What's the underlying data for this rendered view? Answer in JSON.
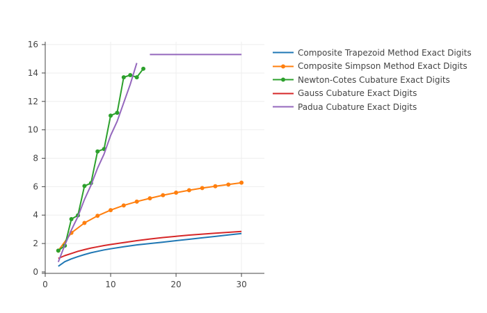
{
  "chart_data": {
    "type": "line",
    "title": "",
    "xlabel": "",
    "ylabel": "",
    "xlim": [
      0,
      33.5
    ],
    "ylim": [
      -0.1,
      16.2
    ],
    "x_ticks": [
      0,
      10,
      20,
      30
    ],
    "y_ticks": [
      0,
      2,
      4,
      6,
      8,
      10,
      12,
      14,
      16
    ],
    "grid": true,
    "legend_position": "top-right (outside plot)",
    "series": [
      {
        "name": "Composite Trapezoid Method Exact Digits",
        "color": "#1f77b4",
        "markers": false,
        "x": [
          2,
          3,
          4,
          5,
          6,
          7,
          8,
          9,
          10,
          12,
          14,
          16,
          18,
          20,
          22,
          24,
          26,
          28,
          30
        ],
        "y": [
          0.4,
          0.72,
          0.92,
          1.08,
          1.22,
          1.35,
          1.45,
          1.55,
          1.63,
          1.77,
          1.9,
          2.0,
          2.1,
          2.2,
          2.3,
          2.4,
          2.5,
          2.6,
          2.7
        ]
      },
      {
        "name": "Composite Simpson Method Exact Digits",
        "color": "#ff7f0e",
        "markers": true,
        "x": [
          2,
          4,
          6,
          8,
          10,
          12,
          14,
          16,
          18,
          20,
          22,
          24,
          26,
          28,
          30
        ],
        "y": [
          1.5,
          2.75,
          3.45,
          3.95,
          4.35,
          4.68,
          4.95,
          5.18,
          5.4,
          5.58,
          5.75,
          5.9,
          6.03,
          6.15,
          6.28
        ]
      },
      {
        "name": "Newton-Cotes Cubature Exact Digits",
        "color": "#2ca02c",
        "markers": true,
        "x": [
          2,
          3,
          4,
          5,
          6,
          7,
          8,
          9,
          10,
          11,
          12,
          13,
          14,
          15
        ],
        "y": [
          1.5,
          1.85,
          3.72,
          3.98,
          6.05,
          6.25,
          8.48,
          8.65,
          11.0,
          11.2,
          13.7,
          13.85,
          13.7,
          14.3
        ]
      },
      {
        "name": "Gauss Cubature Exact Digits",
        "color": "#d62728",
        "markers": false,
        "x": [
          2,
          3,
          4,
          5,
          6,
          7,
          8,
          9,
          10,
          12,
          14,
          16,
          18,
          20,
          22,
          24,
          26,
          28,
          30
        ],
        "y": [
          0.95,
          1.15,
          1.3,
          1.45,
          1.57,
          1.68,
          1.77,
          1.86,
          1.93,
          2.07,
          2.2,
          2.32,
          2.42,
          2.51,
          2.59,
          2.66,
          2.73,
          2.79,
          2.85
        ]
      },
      {
        "name": "Padua Cubature Exact Digits",
        "color": "#9467bd",
        "markers": false,
        "x": [
          2,
          3,
          4,
          5,
          6,
          7,
          8,
          9,
          10,
          11,
          12,
          13,
          14,
          null,
          16,
          30
        ],
        "y": [
          0.7,
          1.9,
          2.95,
          3.9,
          5.1,
          6.1,
          7.3,
          8.3,
          9.6,
          10.6,
          11.9,
          13.2,
          14.7,
          null,
          15.3,
          15.3
        ]
      }
    ]
  }
}
